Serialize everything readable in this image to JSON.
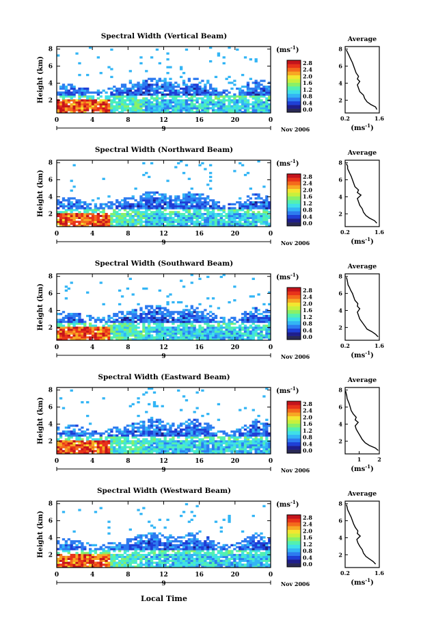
{
  "figure": {
    "xlabel": "Local Time",
    "unit_label": "(ms",
    "unit_exp": "-1",
    "day": "9",
    "date_label": "Nov 2006",
    "avg_title": "Average"
  },
  "colors": {
    "scale": [
      "#2a2a55",
      "#1e1e8c",
      "#1f3fd6",
      "#2d7bf0",
      "#33b5f5",
      "#3fe0e8",
      "#53f0b0",
      "#8af066",
      "#c8f03c",
      "#f3e630",
      "#f7a824",
      "#f46a1c",
      "#e8331a",
      "#c4141c"
    ],
    "blank": "#ffffff",
    "line": "#000000"
  },
  "chart_data": [
    {
      "type": "heatmap",
      "title": "Spectral Width (Vertical Beam)",
      "ylabel": "Height (km)",
      "x_ticks": [
        "0",
        "4",
        "8",
        "12",
        "16",
        "20",
        "0"
      ],
      "y_ticks": [
        "2",
        "4",
        "6",
        "8"
      ],
      "colorbar_ticks": [
        "0.0",
        "0.4",
        "0.8",
        "1.2",
        "1.6",
        "2.0",
        "2.4",
        "2.8"
      ],
      "xlim": [
        0,
        24
      ],
      "ylim": [
        0.5,
        8.3
      ],
      "clim": [
        0,
        3.0
      ],
      "profile": {
        "type": "line",
        "xlim": [
          0.2,
          1.6
        ],
        "x_ticks": [
          "0.2",
          "1.6"
        ],
        "y_ticks": [
          "2",
          "4",
          "6",
          "8"
        ],
        "x": [
          1.5,
          1.45,
          1.25,
          1.1,
          1.0,
          0.95,
          0.8,
          0.75,
          0.7,
          0.8,
          0.7,
          0.75,
          0.65,
          0.6,
          0.55,
          0.5,
          0.45,
          0.4,
          0.35,
          0.3,
          0.25
        ],
        "y": [
          0.9,
          1.2,
          1.5,
          1.8,
          2.2,
          2.6,
          3.0,
          3.4,
          3.8,
          4.2,
          4.5,
          4.8,
          5.2,
          5.6,
          6.0,
          6.4,
          6.7,
          7.0,
          7.3,
          7.6,
          7.9
        ]
      }
    },
    {
      "type": "heatmap",
      "title": "Spectral Width (Northward Beam)",
      "ylabel": "Height (km)",
      "x_ticks": [
        "0",
        "4",
        "8",
        "12",
        "16",
        "20",
        "0"
      ],
      "y_ticks": [
        "2",
        "4",
        "6",
        "8"
      ],
      "colorbar_ticks": [
        "0.0",
        "0.4",
        "0.8",
        "1.2",
        "1.6",
        "2.0",
        "2.4",
        "2.8"
      ],
      "xlim": [
        0,
        24
      ],
      "ylim": [
        0.5,
        8.3
      ],
      "clim": [
        0,
        3.0
      ],
      "profile": {
        "type": "line",
        "xlim": [
          0.2,
          1.6
        ],
        "x_ticks": [
          "0.2",
          "1.6"
        ],
        "y_ticks": [
          "2",
          "4",
          "6",
          "8"
        ],
        "x": [
          1.5,
          1.4,
          1.2,
          1.05,
          0.95,
          0.9,
          0.8,
          0.75,
          0.7,
          0.85,
          0.7,
          0.75,
          0.6,
          0.55,
          0.5,
          0.45,
          0.4,
          0.35,
          0.3,
          0.3,
          0.25
        ],
        "y": [
          0.9,
          1.2,
          1.5,
          1.8,
          2.2,
          2.6,
          3.0,
          3.4,
          3.8,
          4.2,
          4.5,
          4.8,
          5.2,
          5.6,
          6.0,
          6.4,
          6.7,
          7.0,
          7.3,
          7.6,
          7.9
        ]
      }
    },
    {
      "type": "heatmap",
      "title": "Spectral Width (Southward Beam)",
      "ylabel": "Height (km)",
      "x_ticks": [
        "0",
        "4",
        "8",
        "12",
        "16",
        "20",
        "0"
      ],
      "y_ticks": [
        "2",
        "4",
        "6",
        "8"
      ],
      "colorbar_ticks": [
        "0.0",
        "0.4",
        "0.8",
        "1.2",
        "1.6",
        "2.0",
        "2.4",
        "2.8"
      ],
      "xlim": [
        0,
        24
      ],
      "ylim": [
        0.5,
        8.3
      ],
      "clim": [
        0,
        3.0
      ],
      "profile": {
        "type": "line",
        "xlim": [
          0.2,
          1.6
        ],
        "x_ticks": [
          "0.2",
          "1.6"
        ],
        "y_ticks": [
          "2",
          "4",
          "6",
          "8"
        ],
        "x": [
          1.55,
          1.45,
          1.3,
          1.1,
          1.0,
          0.9,
          0.8,
          0.75,
          0.7,
          0.8,
          0.7,
          0.72,
          0.6,
          0.55,
          0.5,
          0.42,
          0.38,
          0.32,
          0.3,
          0.28,
          0.25
        ],
        "y": [
          0.9,
          1.2,
          1.5,
          1.8,
          2.2,
          2.6,
          3.0,
          3.4,
          3.8,
          4.2,
          4.5,
          4.8,
          5.2,
          5.6,
          6.0,
          6.4,
          6.7,
          7.0,
          7.3,
          7.6,
          7.9
        ]
      }
    },
    {
      "type": "heatmap",
      "title": "Spectral Width (Eastward Beam)",
      "ylabel": "Height (km)",
      "x_ticks": [
        "0",
        "4",
        "8",
        "12",
        "16",
        "20",
        "0"
      ],
      "y_ticks": [
        "2",
        "4",
        "6",
        "8"
      ],
      "colorbar_ticks": [
        "0.0",
        "0.4",
        "0.8",
        "1.2",
        "1.6",
        "2.0",
        "2.4",
        "2.8"
      ],
      "xlim": [
        0,
        24
      ],
      "ylim": [
        0.5,
        8.3
      ],
      "clim": [
        0,
        3.0
      ],
      "profile": {
        "type": "line",
        "xlim": [
          0.3,
          2.0
        ],
        "x_ticks": [
          "1",
          "2"
        ],
        "y_ticks": [
          "2",
          "4",
          "6",
          "8"
        ],
        "x": [
          1.95,
          1.8,
          1.5,
          1.3,
          1.15,
          1.05,
          0.95,
          0.85,
          0.8,
          0.95,
          0.8,
          0.85,
          0.7,
          0.6,
          0.55,
          0.5,
          0.45,
          0.4,
          0.38,
          0.35,
          0.32
        ],
        "y": [
          0.9,
          1.2,
          1.5,
          1.8,
          2.2,
          2.6,
          3.0,
          3.4,
          3.8,
          4.2,
          4.5,
          4.8,
          5.2,
          5.6,
          6.0,
          6.4,
          6.7,
          7.0,
          7.3,
          7.6,
          7.9
        ]
      }
    },
    {
      "type": "heatmap",
      "title": "Spectral Width (Westward Beam)",
      "ylabel": "Height (km)",
      "x_ticks": [
        "0",
        "4",
        "8",
        "12",
        "16",
        "20",
        "0"
      ],
      "y_ticks": [
        "2",
        "4",
        "6",
        "8"
      ],
      "colorbar_ticks": [
        "0.0",
        "0.4",
        "0.8",
        "1.2",
        "1.6",
        "2.0",
        "2.4",
        "2.8"
      ],
      "xlim": [
        0,
        24
      ],
      "ylim": [
        0.5,
        8.3
      ],
      "clim": [
        0,
        3.0
      ],
      "profile": {
        "type": "line",
        "xlim": [
          0.2,
          1.6
        ],
        "x_ticks": [
          "0.2",
          "1.6"
        ],
        "y_ticks": [
          "2",
          "4",
          "6",
          "8"
        ],
        "x": [
          1.45,
          1.35,
          1.2,
          1.05,
          0.95,
          0.9,
          0.8,
          0.72,
          0.68,
          0.82,
          0.7,
          0.72,
          0.62,
          0.55,
          0.5,
          0.45,
          0.4,
          0.35,
          0.3,
          0.28,
          0.25
        ],
        "y": [
          0.9,
          1.2,
          1.5,
          1.8,
          2.2,
          2.6,
          3.0,
          3.4,
          3.8,
          4.2,
          4.5,
          4.8,
          5.2,
          5.6,
          6.0,
          6.4,
          6.7,
          7.0,
          7.3,
          7.6,
          7.9
        ]
      }
    }
  ]
}
